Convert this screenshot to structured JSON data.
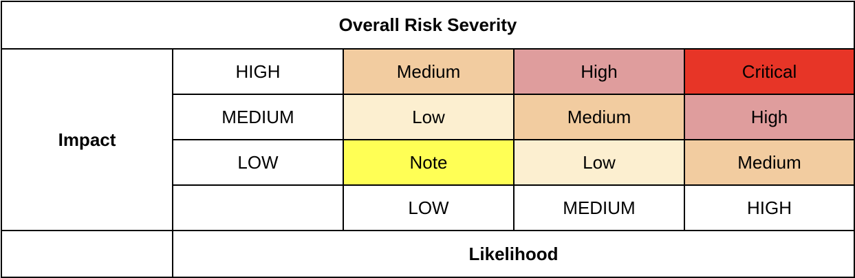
{
  "title": "Overall Risk Severity",
  "impact_label": "Impact",
  "likelihood_label": "Likelihood",
  "colors": {
    "note": "#ffff55",
    "low": "#fcefd0",
    "medium": "#f2cca0",
    "high": "#df9d9d",
    "critical": "#e73527"
  },
  "rows": [
    {
      "impact": "HIGH",
      "cells": [
        {
          "label": "Medium",
          "color": "#f2cca0"
        },
        {
          "label": "High",
          "color": "#df9d9d"
        },
        {
          "label": "Critical",
          "color": "#e73527"
        }
      ]
    },
    {
      "impact": "MEDIUM",
      "cells": [
        {
          "label": "Low",
          "color": "#fcefd0"
        },
        {
          "label": "Medium",
          "color": "#f2cca0"
        },
        {
          "label": "High",
          "color": "#df9d9d"
        }
      ]
    },
    {
      "impact": "LOW",
      "cells": [
        {
          "label": "Note",
          "color": "#ffff55"
        },
        {
          "label": "Low",
          "color": "#fcefd0"
        },
        {
          "label": "Medium",
          "color": "#f2cca0"
        }
      ]
    }
  ],
  "likelihood_levels": [
    "LOW",
    "MEDIUM",
    "HIGH"
  ]
}
